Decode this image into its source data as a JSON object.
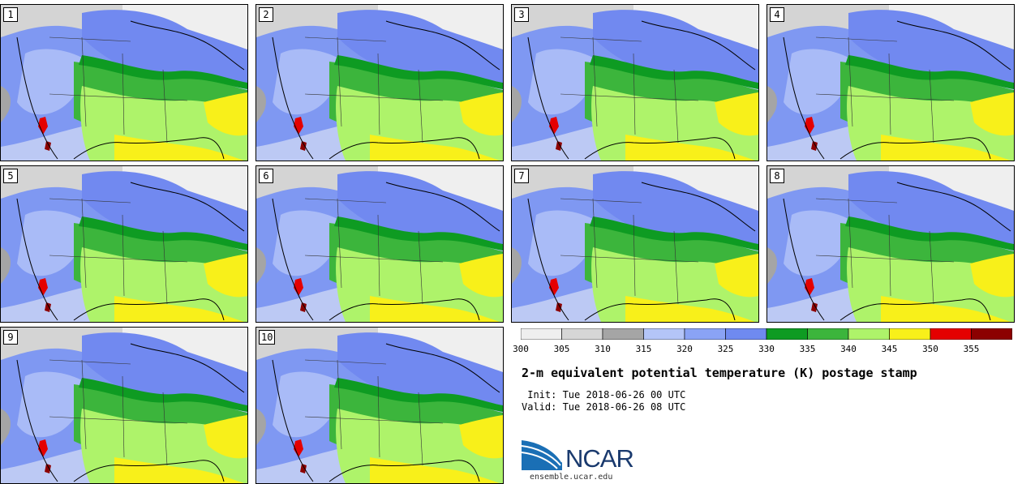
{
  "stamps": [
    {
      "label": "1"
    },
    {
      "label": "2"
    },
    {
      "label": "3"
    },
    {
      "label": "4"
    },
    {
      "label": "5"
    },
    {
      "label": "6"
    },
    {
      "label": "7"
    },
    {
      "label": "8"
    },
    {
      "label": "9"
    },
    {
      "label": "10"
    }
  ],
  "colorbar": {
    "colors": [
      "#efefef",
      "#d6d6d6",
      "#a5a5a5",
      "#b4c5f8",
      "#8aa3f5",
      "#6f8af0",
      "#0e9b22",
      "#3cb53c",
      "#aef36a",
      "#f8f01a",
      "#e40000",
      "#8c0000"
    ],
    "ticks": [
      "300",
      "305",
      "310",
      "315",
      "320",
      "325",
      "330",
      "335",
      "340",
      "345",
      "350",
      "355"
    ]
  },
  "title": "2-m equivalent potential temperature (K) postage stamp",
  "init": " Init: Tue 2018-06-26 00 UTC",
  "valid": "Valid: Tue 2018-06-26 08 UTC",
  "logo": {
    "name": "NCAR",
    "url": "ensemble.ucar.edu"
  }
}
